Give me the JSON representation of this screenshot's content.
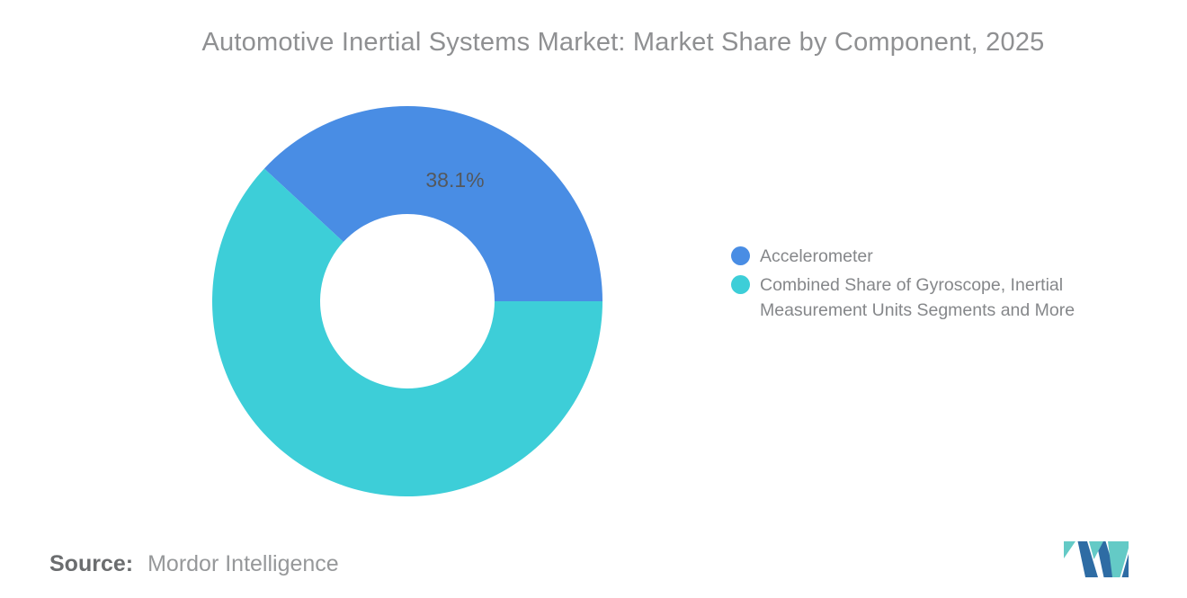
{
  "title": "Automotive Inertial Systems Market: Market Share by Component, 2025",
  "chart_data": {
    "type": "pie",
    "subtype": "donut",
    "title": "Automotive Inertial Systems Market: Market Share by Component, 2025",
    "segments": [
      {
        "label": "Accelerometer",
        "value": 38.1,
        "value_label": "38.1%",
        "color": "#498DE4",
        "show_value_label": true
      },
      {
        "label": "Combined Share of Gyroscope, Inertial Measurement Units Segments and More",
        "value": 61.9,
        "value_label": "",
        "color": "#3DCED8",
        "show_value_label": false
      }
    ],
    "start_angle_deg": -47.16,
    "inner_radius_ratio": 0.447,
    "value_label_color": "#54585D",
    "legend_position": "right",
    "background": "#ffffff"
  },
  "source": {
    "prefix": "Source:",
    "text": "Mordor Intelligence"
  },
  "logo": {
    "name": "mordor-intelligence-logo",
    "navy": "#2E6CA4",
    "teal": "#64CAC6"
  }
}
